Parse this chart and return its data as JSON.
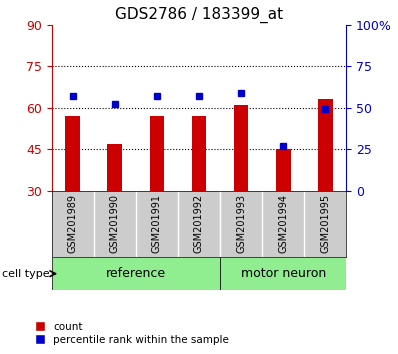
{
  "title": "GDS2786 / 183399_at",
  "samples": [
    "GSM201989",
    "GSM201990",
    "GSM201991",
    "GSM201992",
    "GSM201993",
    "GSM201994",
    "GSM201995"
  ],
  "count_values": [
    57,
    47,
    57,
    57,
    61,
    45,
    63
  ],
  "percentile_values": [
    57,
    52,
    57,
    57,
    59,
    27,
    49
  ],
  "left_ylim": [
    30,
    90
  ],
  "right_ylim": [
    0,
    100
  ],
  "left_yticks": [
    30,
    45,
    60,
    75,
    90
  ],
  "right_yticks": [
    0,
    25,
    50,
    75,
    100
  ],
  "right_yticklabels": [
    "0",
    "25",
    "50",
    "75",
    "100%"
  ],
  "left_ycolor": "#cc0000",
  "right_ycolor": "#0000cc",
  "bar_color": "#cc0000",
  "marker_color": "#0000cc",
  "groups": [
    {
      "label": "reference",
      "start": 0,
      "end": 4,
      "color": "#90ee90"
    },
    {
      "label": "motor neuron",
      "start": 4,
      "end": 7,
      "color": "#90ee90"
    }
  ],
  "cell_type_label": "cell type",
  "legend_count": "count",
  "legend_percentile": "percentile rank within the sample",
  "grid_color": "#000000",
  "background_color": "#ffffff",
  "tick_area_color": "#cccccc"
}
